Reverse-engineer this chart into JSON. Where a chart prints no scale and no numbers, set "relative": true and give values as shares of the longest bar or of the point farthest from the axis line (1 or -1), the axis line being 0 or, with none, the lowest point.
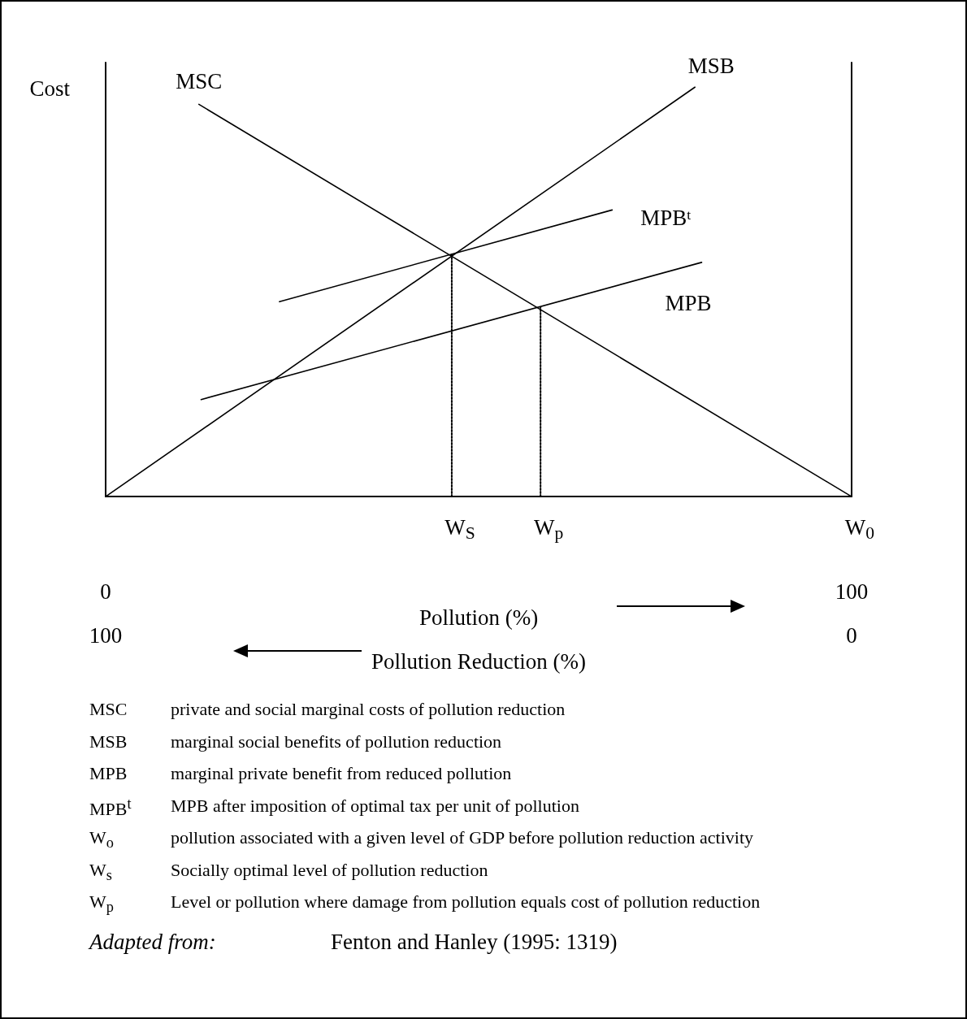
{
  "chart_data": {
    "type": "line",
    "relative": true,
    "ylabel": "Cost",
    "xlabel": "Pollution (%)",
    "xlim": [
      0,
      100
    ],
    "xticks": [
      0,
      100
    ],
    "x2label": "Pollution Reduction (%)",
    "x2lim": [
      100,
      0
    ],
    "x2ticks": [
      100,
      0
    ],
    "marker": "none",
    "line_style": "solid",
    "series": [
      {
        "name": "MSC",
        "color": "#000000",
        "x": [
          12.5,
          100
        ],
        "values": [
          0.958,
          0
        ]
      },
      {
        "name": "MSB",
        "color": "#000000",
        "x": [
          0,
          79.0
        ],
        "values": [
          0,
          1
        ]
      },
      {
        "name": "MPB$^{t}$",
        "color": "#000000",
        "x": [
          23.3,
          67.9
        ],
        "values": [
          0.476,
          0.7
        ]
      },
      {
        "name": "MPB",
        "color": "#000000",
        "x": [
          12.8,
          79.9
        ],
        "values": [
          0.237,
          0.572
        ]
      },
      {
        "color": "#000000",
        "line_style": "dotted",
        "x": [
          46.4,
          46.4
        ],
        "values": [
          0,
          0.593
        ]
      },
      {
        "color": "#000000",
        "line_style": "dotted",
        "x": [
          58.3,
          58.3
        ],
        "values": [
          0,
          0.461
        ]
      }
    ],
    "annotations": [
      {
        "text": "W$_{S}$",
        "x": 46.4,
        "y": 0
      },
      {
        "text": "W$_{p}$",
        "x": 58.3,
        "y": 0
      },
      {
        "text": "W$_{0}$",
        "x": 100,
        "y": 0
      },
      "MSC",
      "private and social marginal costs of pollution reduction",
      "MSB",
      "marginal social benefits of pollution reduction",
      "MPB",
      "marginal private benefit from reduced pollution",
      "MPB$^{t}$",
      "MPB after imposition of optimal tax per unit of pollution",
      "W$_{o}$",
      "pollution associated with a given level of GDP before pollution reduction activity",
      "W$_{s}$",
      "Socially optimal level of pollution reduction",
      "W$_{p}$",
      "Level or pollution where damage from pollution equals cost of pollution reduction",
      "Adapted from:",
      "Fenton and Hanley (1995: 1319)"
    ]
  }
}
